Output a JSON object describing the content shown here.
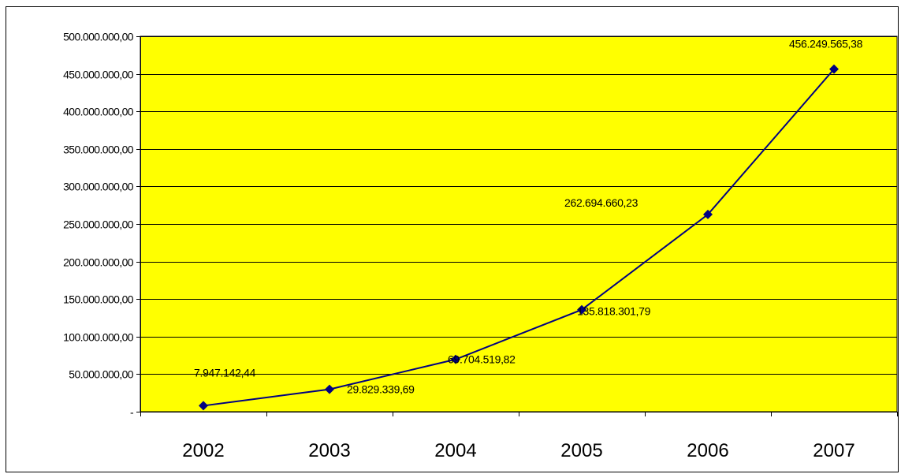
{
  "chart_data": {
    "type": "line",
    "title": "",
    "xlabel": "",
    "ylabel": "",
    "categories": [
      "2002",
      "2003",
      "2004",
      "2005",
      "2006",
      "2007"
    ],
    "series": [
      {
        "values": [
          7947142.44,
          29829339.69,
          69704519.82,
          135818301.79,
          262694660.23,
          456249565.38
        ],
        "data_labels": [
          "7.947.142,44",
          "29.829.339,69",
          "69.704.519,82",
          "135.818.301,79",
          "262.694.660,23",
          "456.249.565,38"
        ],
        "color": "#000080"
      }
    ],
    "ylim": [
      0,
      500000000
    ],
    "y_ticks": [
      0,
      50000000,
      100000000,
      150000000,
      200000000,
      250000000,
      300000000,
      350000000,
      400000000,
      450000000,
      500000000
    ],
    "y_tick_labels": [
      "-",
      "50.000.000,00",
      "100.000.000,00",
      "150.000.000,00",
      "200.000.000,00",
      "250.000.000,00",
      "300.000.000,00",
      "350.000.000,00",
      "400.000.000,00",
      "450.000.000,00",
      "500.000.000,00"
    ],
    "grid": true,
    "legend": false,
    "plot_background": "#ffff00",
    "gridline_color": "#000000",
    "line_color": "#000080",
    "marker": "diamond"
  }
}
